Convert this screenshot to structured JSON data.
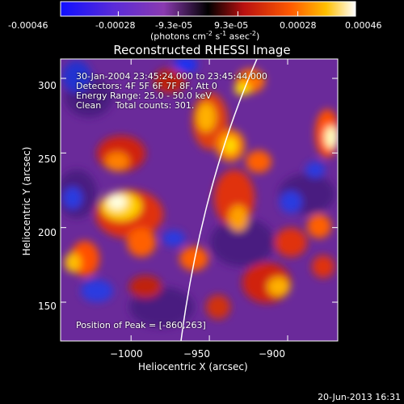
{
  "colorbar": {
    "tick_labels": [
      "-0.00046",
      "-0.00028",
      "-9.3e-05",
      "9.3e-05",
      "0.00028",
      "0.00046"
    ],
    "tick_values": [
      -0.00046,
      -0.00028,
      -9.3e-05,
      9.3e-05,
      0.00028,
      0.00046
    ],
    "unit_label": "(photons cm",
    "unit_label_parts": [
      "(photons cm",
      "-2",
      " s",
      "-1",
      " asec",
      "-2",
      ")"
    ],
    "range": [
      -0.00046,
      0.00046
    ]
  },
  "plot": {
    "title": "Reconstructed RHESSI Image",
    "xlabel": "Heliocentric X (arcsec)",
    "ylabel": "Heliocentric Y (arcsec)",
    "xlim": [
      -1045,
      -868
    ],
    "ylim": [
      124,
      313
    ],
    "x_ticks": [
      -1000,
      -950,
      -900
    ],
    "x_tick_labels": [
      "−1000",
      "−950",
      "−900"
    ],
    "y_ticks": [
      150,
      200,
      250,
      300
    ],
    "y_tick_labels": [
      "150",
      "200",
      "250",
      "300"
    ]
  },
  "info": {
    "time_range": "30-Jan-2004 23:45:24.000 to 23:45:44.000",
    "detectors": "Detectors: 4F 5F 6F 7F 8F, Att 0",
    "energy": "Energy Range: 25.0 - 50.0 keV",
    "clean": "Clean     Total counts: 301.",
    "peak": "Position of Peak = [-860,263]"
  },
  "footer": {
    "date": "20-Jun-2013 16:31"
  },
  "colors": {
    "background": "#000000",
    "limb": "#ffffff",
    "colormap_low": "#0000ff",
    "colormap_mid": "#000000",
    "colormap_high": "#ffffff"
  }
}
